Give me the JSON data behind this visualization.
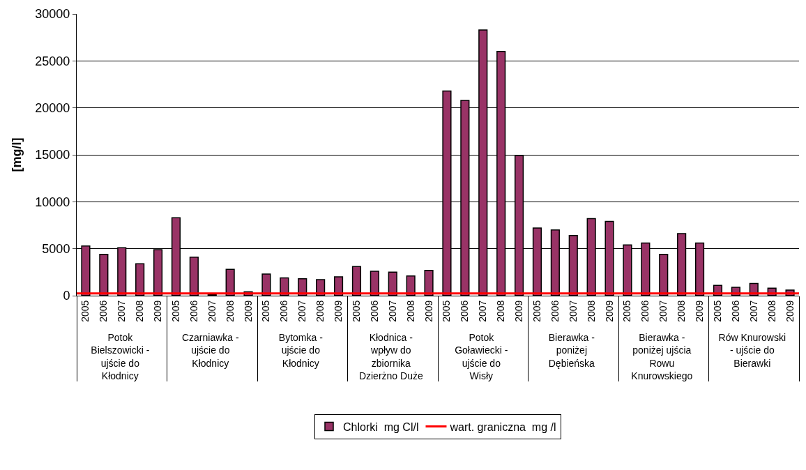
{
  "chart_data": {
    "type": "bar",
    "ylabel": "[mg/l]",
    "categories": [
      "2005",
      "2006",
      "2007",
      "2008",
      "2009",
      "2005",
      "2006",
      "2007",
      "2008",
      "2009",
      "2005",
      "2006",
      "2007",
      "2008",
      "2009",
      "2005",
      "2006",
      "2007",
      "2008",
      "2009",
      "2005",
      "2006",
      "2007",
      "2008",
      "2009",
      "2005",
      "2006",
      "2007",
      "2008",
      "2009",
      "2005",
      "2006",
      "2007",
      "2008",
      "2009",
      "2005",
      "2006",
      "2007",
      "2008",
      "2009"
    ],
    "series": [
      {
        "name": "Chlorki  mg Cl/l",
        "color": "#993366",
        "values": [
          5300,
          4400,
          5100,
          3400,
          4900,
          8300,
          4100,
          100,
          2800,
          400,
          2300,
          1900,
          1800,
          1700,
          2000,
          3100,
          2600,
          2500,
          2100,
          2700,
          21800,
          20800,
          28300,
          26000,
          14900,
          7200,
          7000,
          6400,
          8200,
          7900,
          5400,
          5600,
          4400,
          6600,
          5600,
          1100,
          900,
          1300,
          800,
          600
        ]
      }
    ],
    "ref_lines": [
      {
        "axis": "y",
        "value": 250,
        "label": "wart. graniczna  mg /l",
        "color": "#ff0000",
        "line_style": "solid"
      }
    ],
    "annotations": [
      "Potok Bielszowicki - ujście do Kłodnicy",
      "Czarniawka - ujście do Kłodnicy",
      "Bytomka - ujście do Kłodnicy",
      "Kłodnica - wpływ do zbiornika Dzierżno Duże",
      "Potok Goławiecki - ujście do Wisły",
      "Bierawka - poniżej Dębieńska",
      "Bierawka - poniżej ujścia Rowu Knurowskiego",
      "Rów Knurowski - ujście do Bierawki"
    ],
    "ylim": [
      0,
      30000
    ],
    "yticks": [
      0,
      5000,
      10000,
      15000,
      20000,
      25000,
      30000
    ],
    "grid": "y",
    "legend": "bottom"
  }
}
